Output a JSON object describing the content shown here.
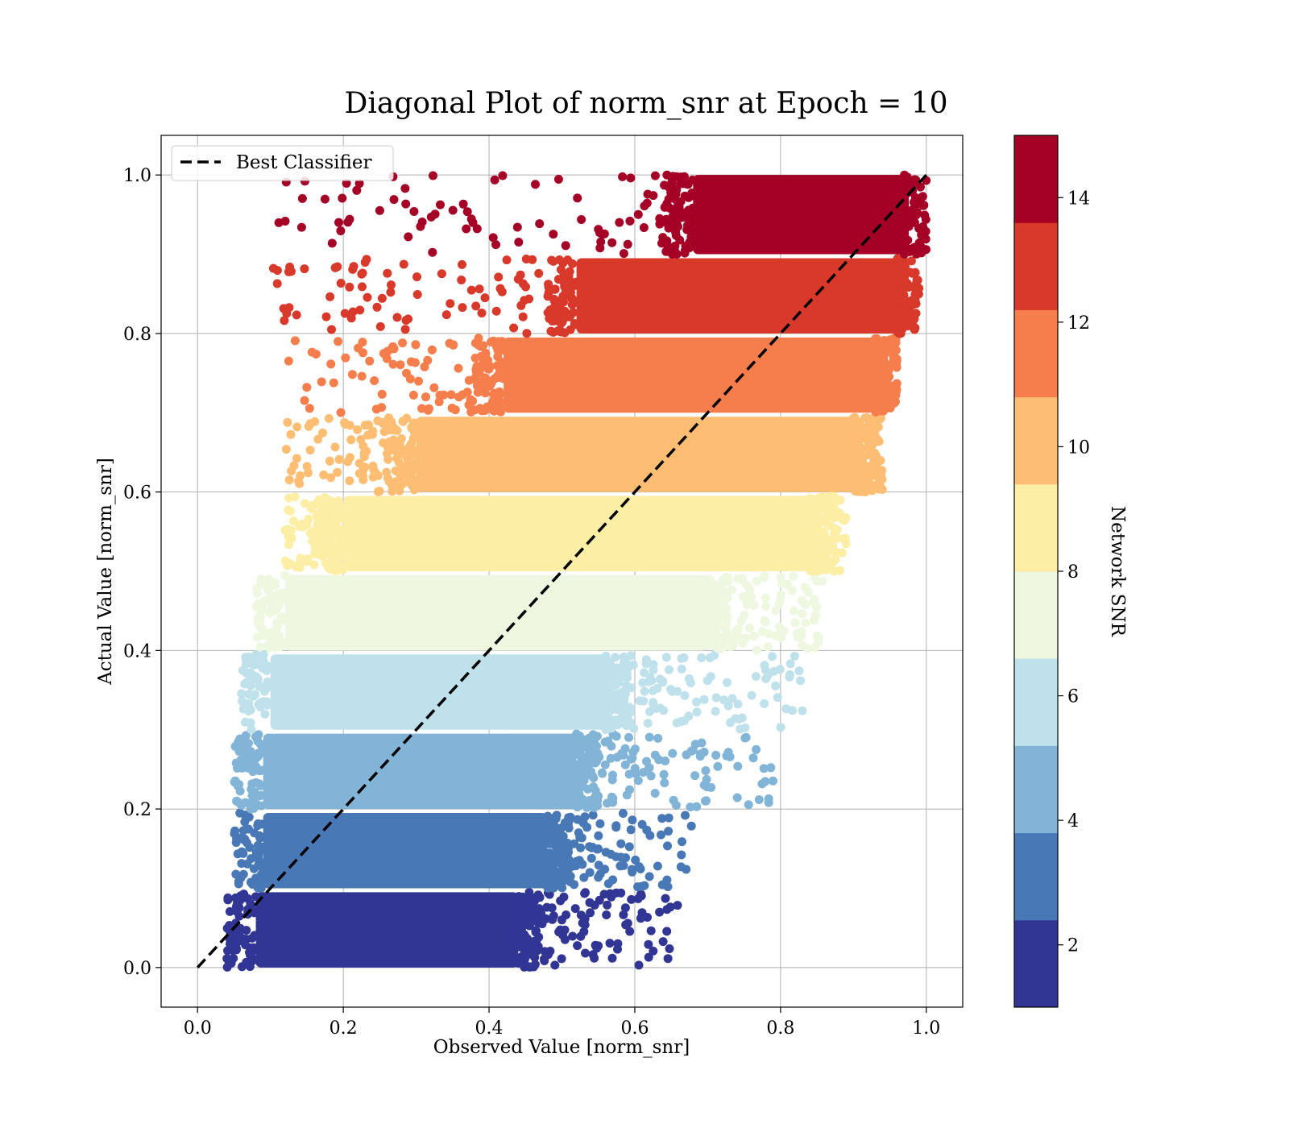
{
  "chart_data": {
    "type": "scatter",
    "title": "Diagonal Plot of norm_snr at Epoch = 10",
    "xlabel": "Observed Value [norm_snr]",
    "ylabel": "Actual Value [norm_snr]",
    "xlim": [
      -0.05,
      1.05
    ],
    "ylim": [
      -0.05,
      1.05
    ],
    "xticks": [
      "0.0",
      "0.2",
      "0.4",
      "0.6",
      "0.8",
      "1.0"
    ],
    "yticks": [
      "0.0",
      "0.2",
      "0.4",
      "0.6",
      "0.8",
      "1.0"
    ],
    "grid": true,
    "legend": {
      "position": "top-left",
      "entries": [
        "Best Classifier"
      ]
    },
    "reference_line": {
      "name": "Best Classifier",
      "style": "dashed",
      "color": "#000000",
      "points": [
        [
          0,
          0
        ],
        [
          1,
          1
        ]
      ]
    },
    "colorbar": {
      "label": "Network SNR",
      "range": [
        1,
        15
      ],
      "ticks": [
        "2",
        "4",
        "6",
        "8",
        "10",
        "12",
        "14"
      ],
      "colors": [
        "#313695",
        "#4575b4",
        "#74add1",
        "#abd9e9",
        "#e0f3f8",
        "#ffffbf",
        "#fee090",
        "#fdae61",
        "#f46d43",
        "#d73027",
        "#a50026"
      ]
    },
    "bands": [
      {
        "snr_bin": [
          1.0,
          2.4
        ],
        "color": "#313695",
        "actual_range": [
          0.0,
          0.095
        ],
        "dense_observed": [
          0.08,
          0.44
        ],
        "tail_observed_max": 0.66
      },
      {
        "snr_bin": [
          2.4,
          3.8
        ],
        "color": "#4878b6",
        "actual_range": [
          0.1,
          0.195
        ],
        "dense_observed": [
          0.09,
          0.48
        ],
        "tail_observed_max": 0.68
      },
      {
        "snr_bin": [
          3.8,
          5.2
        ],
        "color": "#81b4d6",
        "actual_range": [
          0.2,
          0.295
        ],
        "dense_observed": [
          0.09,
          0.52
        ],
        "tail_observed_max": 0.79
      },
      {
        "snr_bin": [
          5.2,
          6.6
        ],
        "color": "#bfe1ec",
        "actual_range": [
          0.3,
          0.395
        ],
        "dense_observed": [
          0.1,
          0.56
        ],
        "tail_observed_max": 0.83
      },
      {
        "snr_bin": [
          6.6,
          8.0
        ],
        "color": "#eef7e0",
        "actual_range": [
          0.4,
          0.495
        ],
        "dense_observed": [
          0.12,
          0.7
        ],
        "tail_observed_max": 0.86
      },
      {
        "snr_bin": [
          8.0,
          9.4
        ],
        "color": "#fdeea6",
        "actual_range": [
          0.5,
          0.595
        ],
        "dense_observed": [
          0.2,
          0.84
        ],
        "tail_observed_max": 0.89
      },
      {
        "snr_bin": [
          9.4,
          10.8
        ],
        "color": "#fdbe74",
        "actual_range": [
          0.6,
          0.695
        ],
        "dense_observed": [
          0.3,
          0.9
        ],
        "tail_observed_max": 0.94
      },
      {
        "snr_bin": [
          10.8,
          12.2
        ],
        "color": "#f57e4c",
        "actual_range": [
          0.7,
          0.795
        ],
        "dense_observed": [
          0.42,
          0.93
        ],
        "tail_observed_max": 0.96
      },
      {
        "snr_bin": [
          12.2,
          13.6
        ],
        "color": "#d8392b",
        "actual_range": [
          0.8,
          0.895
        ],
        "dense_observed": [
          0.52,
          0.96
        ],
        "tail_observed_max": 0.97
      },
      {
        "snr_bin": [
          13.6,
          15.0
        ],
        "color": "#a50026",
        "actual_range": [
          0.9,
          1.0
        ],
        "dense_observed": [
          0.68,
          0.97
        ],
        "tail_observed_max": 0.97
      }
    ]
  }
}
